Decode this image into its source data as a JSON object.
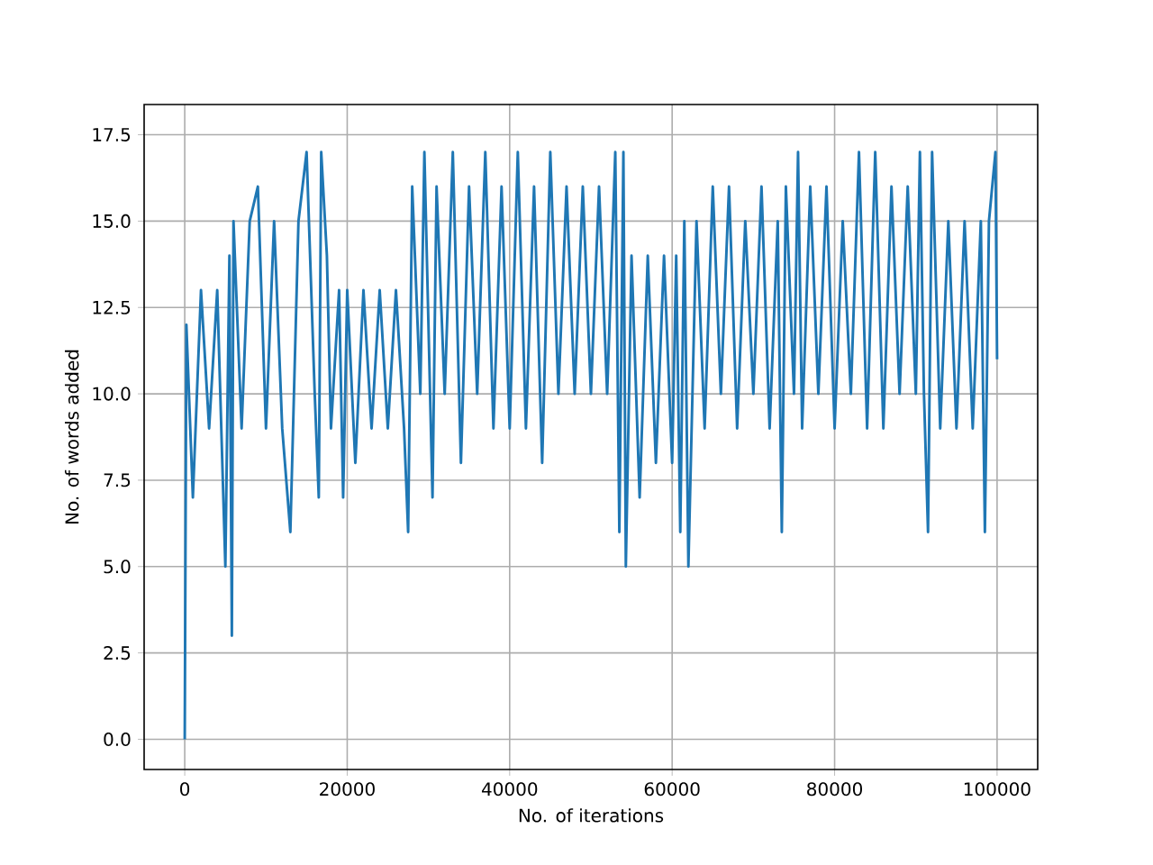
{
  "chart_data": {
    "type": "line",
    "xlabel": "No. of iterations",
    "ylabel": "No. of words added",
    "xlim": [
      -5000,
      105000
    ],
    "ylim": [
      -0.875,
      18.375
    ],
    "xticks": [
      0,
      20000,
      40000,
      60000,
      80000,
      100000
    ],
    "yticks": [
      {
        "value": 0,
        "label": "0.0"
      },
      {
        "value": 2.5,
        "label": "2.5"
      },
      {
        "value": 5,
        "label": "5.0"
      },
      {
        "value": 7.5,
        "label": "7.5"
      },
      {
        "value": 10,
        "label": "10.0"
      },
      {
        "value": 12.5,
        "label": "12.5"
      },
      {
        "value": 15,
        "label": "15.0"
      },
      {
        "value": 17.5,
        "label": "17.5"
      }
    ],
    "grid": true,
    "x": [
      0,
      200,
      1000,
      2000,
      3000,
      4000,
      5000,
      5500,
      5800,
      6000,
      7000,
      8000,
      9000,
      10000,
      11000,
      12000,
      13000,
      14000,
      15000,
      16000,
      16500,
      16800,
      17500,
      18000,
      19000,
      19500,
      20000,
      21000,
      22000,
      23000,
      24000,
      25000,
      26000,
      27000,
      27500,
      28000,
      29000,
      29500,
      30500,
      31000,
      32000,
      33000,
      34000,
      35000,
      36000,
      37000,
      38000,
      39000,
      40000,
      41000,
      42000,
      43000,
      44000,
      45000,
      46000,
      47000,
      48000,
      49000,
      50000,
      51000,
      52000,
      53000,
      53500,
      54000,
      54300,
      55000,
      56000,
      57000,
      58000,
      59000,
      60000,
      60500,
      61000,
      61500,
      62000,
      63000,
      64000,
      65000,
      66000,
      67000,
      68000,
      69000,
      70000,
      71000,
      72000,
      73000,
      73500,
      74000,
      75000,
      75500,
      76000,
      77000,
      78000,
      79000,
      80000,
      81000,
      82000,
      83000,
      84000,
      85000,
      86000,
      87000,
      88000,
      89000,
      90000,
      90500,
      91000,
      91500,
      92000,
      93000,
      94000,
      95000,
      96000,
      97000,
      98000,
      98500,
      99000,
      99800,
      100000
    ],
    "series": [
      {
        "color": "#1f77b4",
        "values": [
          0,
          12,
          7,
          13,
          9,
          13,
          5,
          14,
          3,
          15,
          9,
          15,
          16,
          9,
          15,
          9,
          6,
          15,
          17,
          10,
          7,
          17,
          14,
          9,
          13,
          7,
          13,
          8,
          13,
          9,
          13,
          9,
          13,
          9,
          6,
          16,
          10,
          17,
          7,
          16,
          10,
          17,
          8,
          16,
          10,
          17,
          9,
          16,
          9,
          17,
          9,
          16,
          8,
          17,
          10,
          16,
          10,
          16,
          10,
          16,
          10,
          17,
          6,
          17,
          5,
          14,
          7,
          14,
          8,
          14,
          8,
          14,
          6,
          15,
          5,
          15,
          9,
          16,
          10,
          16,
          9,
          15,
          10,
          16,
          9,
          15,
          6,
          16,
          10,
          17,
          9,
          16,
          10,
          16,
          9,
          15,
          10,
          17,
          9,
          17,
          9,
          16,
          10,
          16,
          10,
          17,
          10,
          6,
          17,
          9,
          15,
          9,
          15,
          9,
          15,
          6,
          15,
          17,
          11
        ]
      }
    ]
  }
}
